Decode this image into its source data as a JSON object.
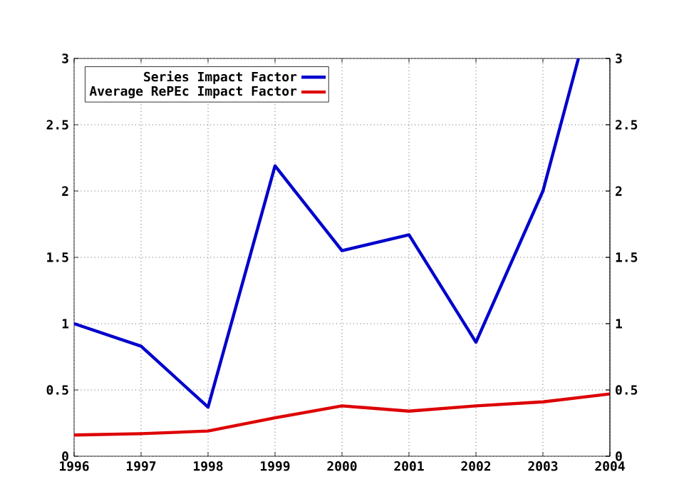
{
  "chart_data": {
    "type": "line",
    "xlim": [
      1996,
      2004
    ],
    "xticks": [
      1996,
      1997,
      1998,
      1999,
      2000,
      2001,
      2002,
      2003,
      2004
    ],
    "ylim": [
      0,
      3
    ],
    "yticks": [
      0,
      0.5,
      1,
      1.5,
      2,
      2.5,
      3
    ],
    "y2lim": [
      0,
      3
    ],
    "y2ticks": [
      0,
      0.5,
      1,
      1.5,
      2,
      2.5,
      3
    ],
    "grid": true,
    "legend": "top left",
    "series": [
      {
        "name": "Series Impact Factor",
        "color": "#0000cc",
        "x": [
          1996,
          1997,
          1998,
          1999,
          2000,
          2001,
          2002,
          2003,
          2003.53
        ],
        "values": [
          1.0,
          0.83,
          0.37,
          2.19,
          1.55,
          1.67,
          0.86,
          2.0,
          3.0
        ]
      },
      {
        "name": "Average RePEc Impact Factor",
        "color": "#dd0000",
        "x": [
          1996,
          1997,
          1998,
          1999,
          2000,
          2001,
          2002,
          2003,
          2004
        ],
        "values": [
          0.16,
          0.17,
          0.19,
          0.29,
          0.38,
          0.34,
          0.38,
          0.41,
          0.47
        ]
      }
    ]
  }
}
